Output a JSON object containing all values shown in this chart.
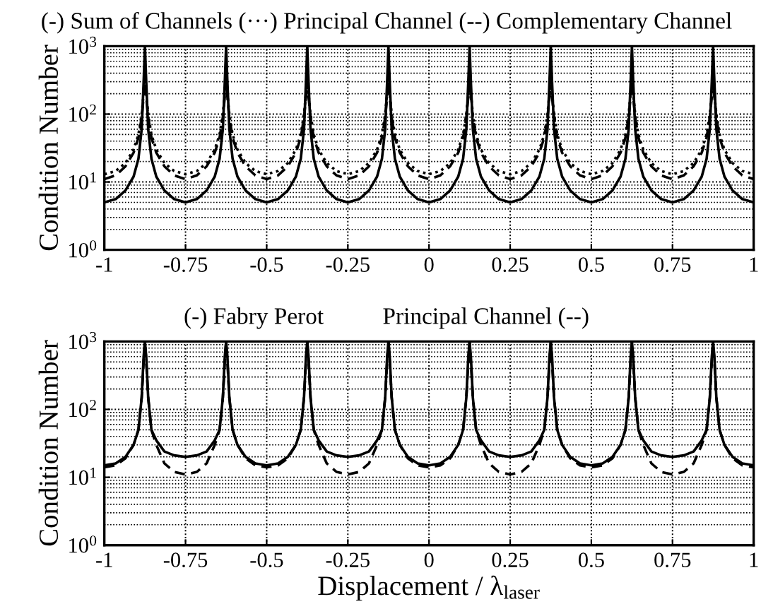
{
  "chart_data": [
    {
      "type": "line",
      "title": "(-) Sum of Channels (···) Principal Channel (--) Complementary Channel",
      "ylabel": "Condition Number",
      "log": "y",
      "grid": true,
      "marker": "none",
      "xlim": [
        -1,
        1
      ],
      "xticks": [
        -1,
        -0.75,
        -0.5,
        -0.25,
        0,
        0.25,
        0.5,
        0.75,
        1
      ],
      "ylim": [
        1,
        1000
      ],
      "yticks": [
        {
          "value": 1,
          "label": "10$^{0}$"
        },
        {
          "value": 10,
          "label": "10$^{1}$"
        },
        {
          "value": 100,
          "label": "10$^{2}$"
        },
        {
          "value": 1000,
          "label": "10$^{3}$"
        }
      ],
      "x": [
        -1,
        -0.965,
        -0.935,
        -0.91,
        -0.895,
        -0.885,
        -0.879,
        -0.875,
        -0.871,
        -0.865,
        -0.855,
        -0.84,
        -0.815,
        -0.785,
        -0.75,
        -0.715,
        -0.685,
        -0.66,
        -0.645,
        -0.635,
        -0.629,
        -0.625,
        -0.621,
        -0.615,
        -0.605,
        -0.59,
        -0.565,
        -0.535,
        -0.5,
        -0.465,
        -0.435,
        -0.41,
        -0.395,
        -0.385,
        -0.379,
        -0.375,
        -0.371,
        -0.365,
        -0.355,
        -0.34,
        -0.315,
        -0.285,
        -0.25,
        -0.215,
        -0.185,
        -0.16,
        -0.145,
        -0.135,
        -0.129,
        -0.125,
        -0.121,
        -0.115,
        -0.105,
        -0.09,
        -0.065,
        -0.035,
        0,
        0.035,
        0.065,
        0.09,
        0.105,
        0.115,
        0.121,
        0.125,
        0.129,
        0.135,
        0.145,
        0.16,
        0.185,
        0.215,
        0.25,
        0.285,
        0.315,
        0.34,
        0.355,
        0.365,
        0.371,
        0.375,
        0.379,
        0.385,
        0.395,
        0.41,
        0.435,
        0.465,
        0.5,
        0.535,
        0.565,
        0.59,
        0.605,
        0.615,
        0.621,
        0.625,
        0.629,
        0.635,
        0.645,
        0.66,
        0.685,
        0.715,
        0.75,
        0.785,
        0.815,
        0.84,
        0.855,
        0.865,
        0.871,
        0.875,
        0.879,
        0.885,
        0.895,
        0.91,
        0.935,
        0.965,
        1
      ],
      "series": [
        {
          "color": "#000000",
          "line_style": "solid",
          "values": [
            5,
            5.6,
            7.5,
            12,
            22,
            60,
            300,
            1000,
            300,
            60,
            22,
            12,
            7.5,
            5.6,
            5,
            5.6,
            7.5,
            12,
            22,
            60,
            300,
            1000,
            300,
            60,
            22,
            12,
            7.5,
            5.6,
            5,
            5.6,
            7.5,
            12,
            22,
            60,
            300,
            1000,
            300,
            60,
            22,
            12,
            7.5,
            5.6,
            5,
            5.6,
            7.5,
            12,
            22,
            60,
            300,
            1000,
            300,
            60,
            22,
            12,
            7.5,
            5.6,
            5,
            5.6,
            7.5,
            12,
            22,
            60,
            300,
            1000,
            300,
            60,
            22,
            12,
            7.5,
            5.6,
            5,
            5.6,
            7.5,
            12,
            22,
            60,
            300,
            1000,
            300,
            60,
            22,
            12,
            7.5,
            5.6,
            5,
            5.6,
            7.5,
            12,
            22,
            60,
            300,
            1000,
            300,
            60,
            22,
            12,
            7.5,
            5.6,
            5,
            5.6,
            7.5,
            12,
            22,
            60,
            300,
            1000,
            300,
            60,
            22,
            12,
            7.5,
            5.6,
            5
          ]
        },
        {
          "color": "#000000",
          "line_style": "dotted",
          "values": [
            13,
            14.5,
            19,
            30,
            50,
            100,
            200,
            300,
            200,
            100,
            50,
            30,
            19,
            14.5,
            13,
            14.5,
            19,
            30,
            50,
            100,
            200,
            300,
            200,
            100,
            50,
            30,
            19,
            14.5,
            13,
            14.5,
            19,
            30,
            50,
            100,
            200,
            300,
            200,
            100,
            50,
            30,
            19,
            14.5,
            13,
            14.5,
            19,
            30,
            50,
            100,
            200,
            300,
            200,
            100,
            50,
            30,
            19,
            14.5,
            13,
            14.5,
            19,
            30,
            50,
            100,
            200,
            300,
            200,
            100,
            50,
            30,
            19,
            14.5,
            13,
            14.5,
            19,
            30,
            50,
            100,
            200,
            300,
            200,
            100,
            50,
            30,
            19,
            14.5,
            13,
            14.5,
            19,
            30,
            50,
            100,
            200,
            300,
            200,
            100,
            50,
            30,
            19,
            14.5,
            13,
            14.5,
            19,
            30,
            50,
            100,
            200,
            300,
            200,
            100,
            50,
            30,
            19,
            14.5,
            13
          ]
        },
        {
          "color": "#000000",
          "line_style": "dashed",
          "values": [
            11,
            12.5,
            17,
            27,
            45,
            90,
            180,
            300,
            180,
            90,
            45,
            27,
            17,
            12.5,
            11,
            12.5,
            17,
            27,
            45,
            90,
            180,
            300,
            180,
            90,
            45,
            27,
            17,
            12.5,
            11,
            12.5,
            17,
            27,
            45,
            90,
            180,
            300,
            180,
            90,
            45,
            27,
            17,
            12.5,
            11,
            12.5,
            17,
            27,
            45,
            90,
            180,
            300,
            180,
            90,
            45,
            27,
            17,
            12.5,
            11,
            12.5,
            17,
            27,
            45,
            90,
            180,
            300,
            180,
            90,
            45,
            27,
            17,
            12.5,
            11,
            12.5,
            17,
            27,
            45,
            90,
            180,
            300,
            180,
            90,
            45,
            27,
            17,
            12.5,
            11,
            12.5,
            17,
            27,
            45,
            90,
            180,
            300,
            180,
            90,
            45,
            27,
            17,
            12.5,
            11,
            12.5,
            17,
            27,
            45,
            90,
            180,
            300,
            180,
            90,
            45,
            27,
            17,
            12.5,
            11
          ]
        }
      ]
    },
    {
      "type": "line",
      "title": "(-) Fabry Perot          Principal Channel (--)",
      "xlabel": "Displacement / λ$_{laser}$",
      "ylabel": "Condition Number",
      "log": "y",
      "grid": true,
      "marker": "none",
      "xlim": [
        -1,
        1
      ],
      "xticks": [
        -1,
        -0.75,
        -0.5,
        -0.25,
        0,
        0.25,
        0.5,
        0.75,
        1
      ],
      "ylim": [
        1,
        1000
      ],
      "yticks": [
        {
          "value": 1,
          "label": "10$^{0}$"
        },
        {
          "value": 10,
          "label": "10$^{1}$"
        },
        {
          "value": 100,
          "label": "10$^{2}$"
        },
        {
          "value": 1000,
          "label": "10$^{3}$"
        }
      ],
      "x": [
        -1,
        -0.965,
        -0.935,
        -0.91,
        -0.895,
        -0.885,
        -0.879,
        -0.875,
        -0.871,
        -0.865,
        -0.855,
        -0.84,
        -0.815,
        -0.785,
        -0.75,
        -0.715,
        -0.685,
        -0.66,
        -0.645,
        -0.635,
        -0.629,
        -0.625,
        -0.621,
        -0.615,
        -0.605,
        -0.59,
        -0.565,
        -0.535,
        -0.5,
        -0.465,
        -0.435,
        -0.41,
        -0.395,
        -0.385,
        -0.379,
        -0.375,
        -0.371,
        -0.365,
        -0.355,
        -0.34,
        -0.315,
        -0.285,
        -0.25,
        -0.215,
        -0.185,
        -0.16,
        -0.145,
        -0.135,
        -0.129,
        -0.125,
        -0.121,
        -0.115,
        -0.105,
        -0.09,
        -0.065,
        -0.035,
        0,
        0.035,
        0.065,
        0.09,
        0.105,
        0.115,
        0.121,
        0.125,
        0.129,
        0.135,
        0.145,
        0.16,
        0.185,
        0.215,
        0.25,
        0.285,
        0.315,
        0.34,
        0.355,
        0.365,
        0.371,
        0.375,
        0.379,
        0.385,
        0.395,
        0.41,
        0.435,
        0.465,
        0.5,
        0.535,
        0.565,
        0.59,
        0.605,
        0.615,
        0.621,
        0.625,
        0.629,
        0.635,
        0.645,
        0.66,
        0.685,
        0.715,
        0.75,
        0.785,
        0.815,
        0.84,
        0.855,
        0.865,
        0.871,
        0.875,
        0.879,
        0.885,
        0.895,
        0.91,
        0.935,
        0.965,
        1
      ],
      "series": [
        {
          "color": "#000000",
          "line_style": "solid",
          "values": [
            15,
            16,
            20,
            30,
            50,
            150,
            600,
            1000,
            600,
            150,
            50,
            35,
            24,
            21,
            20,
            21,
            24,
            35,
            50,
            150,
            600,
            1000,
            600,
            150,
            50,
            30,
            20,
            16,
            15,
            16,
            20,
            30,
            50,
            150,
            600,
            1000,
            600,
            150,
            50,
            35,
            24,
            21,
            20,
            21,
            24,
            35,
            50,
            150,
            600,
            1000,
            600,
            150,
            50,
            30,
            20,
            16,
            15,
            16,
            20,
            30,
            50,
            150,
            600,
            1000,
            600,
            150,
            50,
            35,
            24,
            21,
            20,
            21,
            24,
            35,
            50,
            150,
            600,
            1000,
            600,
            150,
            50,
            30,
            20,
            16,
            15,
            16,
            20,
            30,
            50,
            150,
            600,
            1000,
            600,
            150,
            50,
            35,
            24,
            21,
            20,
            21,
            24,
            35,
            50,
            150,
            600,
            1000,
            600,
            150,
            50,
            30,
            20,
            16,
            15
          ]
        },
        {
          "color": "#000000",
          "line_style": "dashed",
          "values": [
            14,
            15,
            19,
            30,
            50,
            150,
            500,
            1000,
            500,
            150,
            50,
            30,
            16,
            12,
            11,
            12,
            16,
            30,
            50,
            150,
            500,
            1000,
            500,
            150,
            50,
            30,
            19,
            15,
            14,
            15,
            19,
            30,
            50,
            150,
            500,
            1000,
            500,
            150,
            50,
            30,
            16,
            12,
            11,
            12,
            16,
            30,
            50,
            150,
            500,
            1000,
            500,
            150,
            50,
            30,
            19,
            15,
            14,
            15,
            19,
            30,
            50,
            150,
            500,
            1000,
            500,
            150,
            50,
            30,
            16,
            12,
            11,
            12,
            16,
            30,
            50,
            150,
            500,
            1000,
            500,
            150,
            50,
            30,
            19,
            15,
            14,
            15,
            19,
            30,
            50,
            150,
            500,
            1000,
            500,
            150,
            50,
            30,
            16,
            12,
            11,
            12,
            16,
            30,
            50,
            150,
            500,
            1000,
            500,
            150,
            50,
            30,
            19,
            15,
            14
          ]
        }
      ]
    }
  ]
}
